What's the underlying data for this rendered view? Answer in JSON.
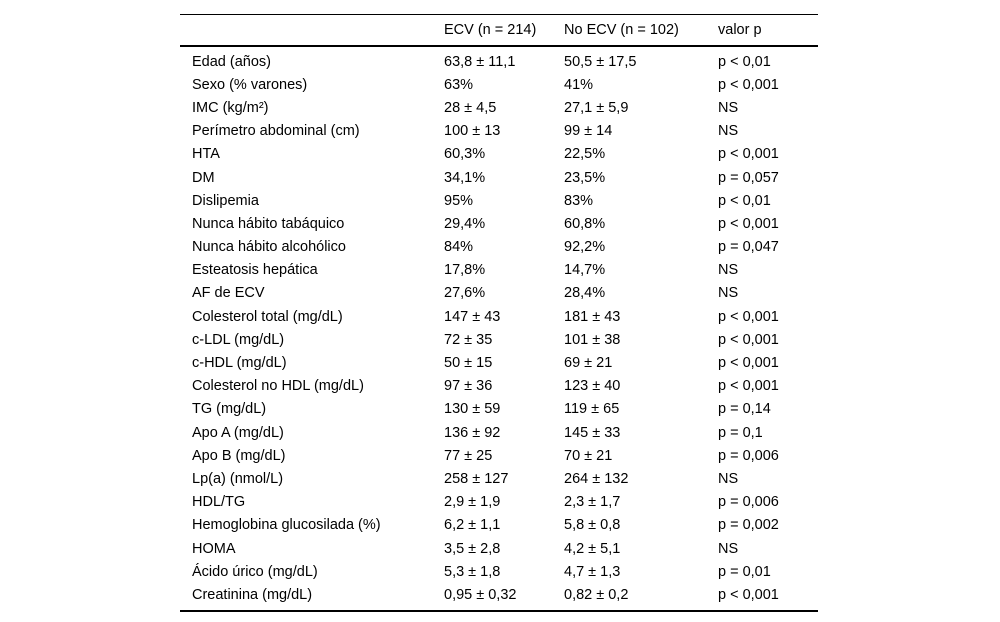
{
  "page": {
    "background_color": "#ffffff",
    "text_color": "#000000",
    "rule_color": "#000000"
  },
  "table": {
    "columns": [
      "",
      "ECV (n = 214)",
      "No ECV (n = 102)",
      "valor p"
    ],
    "rows": [
      {
        "label": "Edad (años)",
        "ecv": "63,8 ± 11,1",
        "no_ecv": "50,5 ± 17,5",
        "p": "p < 0,01"
      },
      {
        "label": "Sexo (% varones)",
        "ecv": "63%",
        "no_ecv": "41%",
        "p": "p < 0,001"
      },
      {
        "label": "IMC (kg/m²)",
        "ecv": "28 ± 4,5",
        "no_ecv": "27,1 ± 5,9",
        "p": "NS"
      },
      {
        "label": "Perímetro abdominal (cm)",
        "ecv": "100 ± 13",
        "no_ecv": "99 ± 14",
        "p": "NS"
      },
      {
        "label": "HTA",
        "ecv": "60,3%",
        "no_ecv": "22,5%",
        "p": "p < 0,001"
      },
      {
        "label": "DM",
        "ecv": "34,1%",
        "no_ecv": "23,5%",
        "p": "p = 0,057"
      },
      {
        "label": "Dislipemia",
        "ecv": "95%",
        "no_ecv": "83%",
        "p": "p < 0,01"
      },
      {
        "label": "Nunca hábito tabáquico",
        "ecv": "29,4%",
        "no_ecv": "60,8%",
        "p": "p < 0,001"
      },
      {
        "label": "Nunca hábito alcohólico",
        "ecv": "84%",
        "no_ecv": "92,2%",
        "p": "p = 0,047"
      },
      {
        "label": "Esteatosis hepática",
        "ecv": "17,8%",
        "no_ecv": "14,7%",
        "p": "NS"
      },
      {
        "label": "AF de ECV",
        "ecv": "27,6%",
        "no_ecv": "28,4%",
        "p": "NS"
      },
      {
        "label": "Colesterol total (mg/dL)",
        "ecv": "147 ± 43",
        "no_ecv": "181 ± 43",
        "p": "p < 0,001"
      },
      {
        "label": "c-LDL (mg/dL)",
        "ecv": "72 ± 35",
        "no_ecv": "101 ± 38",
        "p": "p < 0,001"
      },
      {
        "label": "c-HDL (mg/dL)",
        "ecv": "50 ± 15",
        "no_ecv": "69 ± 21",
        "p": "p < 0,001"
      },
      {
        "label": "Colesterol no HDL (mg/dL)",
        "ecv": "97 ± 36",
        "no_ecv": "123 ± 40",
        "p": "p < 0,001"
      },
      {
        "label": "TG (mg/dL)",
        "ecv": "130 ± 59",
        "no_ecv": "119 ± 65",
        "p": "p = 0,14"
      },
      {
        "label": "Apo A (mg/dL)",
        "ecv": "136 ± 92",
        "no_ecv": "145 ± 33",
        "p": "p = 0,1"
      },
      {
        "label": "Apo B (mg/dL)",
        "ecv": "77 ± 25",
        "no_ecv": "70 ± 21",
        "p": "p = 0,006"
      },
      {
        "label": "Lp(a) (nmol/L)",
        "ecv": "258 ± 127",
        "no_ecv": "264 ± 132",
        "p": "NS"
      },
      {
        "label": "HDL/TG",
        "ecv": "2,9 ± 1,9",
        "no_ecv": "2,3 ± 1,7",
        "p": "p = 0,006"
      },
      {
        "label": "Hemoglobina glucosilada (%)",
        "ecv": "6,2 ± 1,1",
        "no_ecv": "5,8 ± 0,8",
        "p": "p = 0,002"
      },
      {
        "label": "HOMA",
        "ecv": "3,5 ± 2,8",
        "no_ecv": "4,2 ± 5,1",
        "p": "NS"
      },
      {
        "label": "Ácido úrico (mg/dL)",
        "ecv": "5,3 ± 1,8",
        "no_ecv": "4,7 ± 1,3",
        "p": "p = 0,01"
      },
      {
        "label": "Creatinina (mg/dL)",
        "ecv": "0,95 ± 0,32",
        "no_ecv": "0,82 ± 0,2",
        "p": "p < 0,001"
      }
    ]
  }
}
